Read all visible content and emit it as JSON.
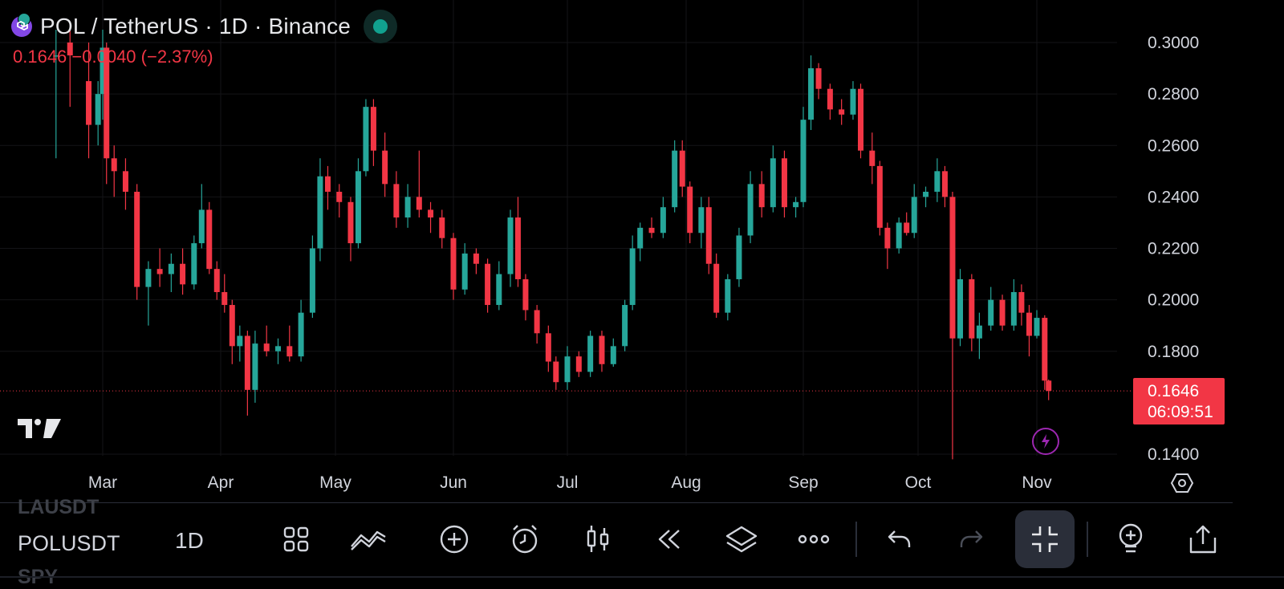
{
  "header": {
    "title": "POL / TetherUS · 1D · Binance",
    "change_line": "0.1646 −0.0040 (−2.37%)"
  },
  "price_tag": {
    "price": "0.1646",
    "countdown": "06:09:51"
  },
  "colors": {
    "up": "#26a69a",
    "down": "#f23645",
    "background": "#000000",
    "accent": "#f23645"
  },
  "toolbar": {
    "ghost_symbol_top": "LAUSDT",
    "symbol": "POLUSDT",
    "ghost_symbol_bottom": "SPY",
    "interval": "1D",
    "icons": [
      "apps-grid-icon",
      "indicators-icon",
      "add-icon",
      "alert-clock-icon",
      "candles-icon",
      "replay-icon",
      "layers-icon",
      "more-icon",
      "undo-icon",
      "redo-icon",
      "collapse-icon",
      "idea-bulb-icon",
      "share-icon"
    ]
  },
  "chart_data": {
    "type": "candlestick",
    "symbol": "POL / TetherUS",
    "interval": "1D",
    "exchange": "Binance",
    "last_price": 0.1646,
    "change": -0.004,
    "change_percent": -2.37,
    "ylim": [
      0.135,
      0.305
    ],
    "y_ticks": [
      "0.3000",
      "0.2800",
      "0.2600",
      "0.2400",
      "0.2200",
      "0.2000",
      "0.1800",
      "0.1400"
    ],
    "x_ticks": [
      "Mar",
      "Apr",
      "May",
      "Jun",
      "Jul",
      "Aug",
      "Sep",
      "Oct",
      "Nov"
    ],
    "series": [
      {
        "date": "Feb 19",
        "open": 0.295,
        "high": 0.305,
        "low": 0.255,
        "close": 0.295
      },
      {
        "date": "Feb 22",
        "open": 0.3,
        "high": 0.305,
        "low": 0.275,
        "close": 0.295
      },
      {
        "date": "Feb 26",
        "open": 0.285,
        "high": 0.3,
        "low": 0.255,
        "close": 0.268
      },
      {
        "date": "Feb 28",
        "open": 0.268,
        "high": 0.285,
        "low": 0.26,
        "close": 0.28
      },
      {
        "date": "Mar 1",
        "open": 0.28,
        "high": 0.305,
        "low": 0.27,
        "close": 0.298
      },
      {
        "date": "Mar 2",
        "open": 0.298,
        "high": 0.3,
        "low": 0.245,
        "close": 0.255
      },
      {
        "date": "Mar 4",
        "open": 0.255,
        "high": 0.26,
        "low": 0.24,
        "close": 0.25
      },
      {
        "date": "Mar 7",
        "open": 0.25,
        "high": 0.255,
        "low": 0.235,
        "close": 0.242
      },
      {
        "date": "Mar 10",
        "open": 0.242,
        "high": 0.245,
        "low": 0.2,
        "close": 0.205
      },
      {
        "date": "Mar 13",
        "open": 0.205,
        "high": 0.215,
        "low": 0.19,
        "close": 0.212
      },
      {
        "date": "Mar 16",
        "open": 0.212,
        "high": 0.22,
        "low": 0.205,
        "close": 0.21
      },
      {
        "date": "Mar 19",
        "open": 0.21,
        "high": 0.218,
        "low": 0.203,
        "close": 0.214
      },
      {
        "date": "Mar 22",
        "open": 0.214,
        "high": 0.22,
        "low": 0.202,
        "close": 0.206
      },
      {
        "date": "Mar 25",
        "open": 0.206,
        "high": 0.225,
        "low": 0.204,
        "close": 0.222
      },
      {
        "date": "Mar 27",
        "open": 0.222,
        "high": 0.245,
        "low": 0.22,
        "close": 0.235
      },
      {
        "date": "Mar 29",
        "open": 0.235,
        "high": 0.238,
        "low": 0.21,
        "close": 0.212
      },
      {
        "date": "Mar 31",
        "open": 0.212,
        "high": 0.215,
        "low": 0.2,
        "close": 0.203
      },
      {
        "date": "Apr 2",
        "open": 0.203,
        "high": 0.21,
        "low": 0.195,
        "close": 0.198
      },
      {
        "date": "Apr 4",
        "open": 0.198,
        "high": 0.2,
        "low": 0.175,
        "close": 0.182
      },
      {
        "date": "Apr 6",
        "open": 0.182,
        "high": 0.19,
        "low": 0.176,
        "close": 0.186
      },
      {
        "date": "Apr 8",
        "open": 0.186,
        "high": 0.188,
        "low": 0.155,
        "close": 0.165
      },
      {
        "date": "Apr 10",
        "open": 0.165,
        "high": 0.188,
        "low": 0.16,
        "close": 0.183
      },
      {
        "date": "Apr 13",
        "open": 0.183,
        "high": 0.19,
        "low": 0.178,
        "close": 0.18
      },
      {
        "date": "Apr 16",
        "open": 0.18,
        "high": 0.185,
        "low": 0.175,
        "close": 0.182
      },
      {
        "date": "Apr 19",
        "open": 0.182,
        "high": 0.19,
        "low": 0.176,
        "close": 0.178
      },
      {
        "date": "Apr 22",
        "open": 0.178,
        "high": 0.2,
        "low": 0.176,
        "close": 0.195
      },
      {
        "date": "Apr 25",
        "open": 0.195,
        "high": 0.225,
        "low": 0.193,
        "close": 0.22
      },
      {
        "date": "Apr 27",
        "open": 0.22,
        "high": 0.255,
        "low": 0.215,
        "close": 0.248
      },
      {
        "date": "Apr 29",
        "open": 0.248,
        "high": 0.252,
        "low": 0.235,
        "close": 0.242
      },
      {
        "date": "May 2",
        "open": 0.242,
        "high": 0.245,
        "low": 0.232,
        "close": 0.238
      },
      {
        "date": "May 5",
        "open": 0.238,
        "high": 0.24,
        "low": 0.215,
        "close": 0.222
      },
      {
        "date": "May 7",
        "open": 0.222,
        "high": 0.255,
        "low": 0.22,
        "close": 0.25
      },
      {
        "date": "May 9",
        "open": 0.25,
        "high": 0.278,
        "low": 0.248,
        "close": 0.275
      },
      {
        "date": "May 11",
        "open": 0.275,
        "high": 0.278,
        "low": 0.252,
        "close": 0.258
      },
      {
        "date": "May 14",
        "open": 0.258,
        "high": 0.265,
        "low": 0.24,
        "close": 0.245
      },
      {
        "date": "May 17",
        "open": 0.245,
        "high": 0.25,
        "low": 0.228,
        "close": 0.232
      },
      {
        "date": "May 20",
        "open": 0.232,
        "high": 0.245,
        "low": 0.228,
        "close": 0.24
      },
      {
        "date": "May 23",
        "open": 0.24,
        "high": 0.258,
        "low": 0.232,
        "close": 0.235
      },
      {
        "date": "May 26",
        "open": 0.235,
        "high": 0.238,
        "low": 0.226,
        "close": 0.232
      },
      {
        "date": "May 29",
        "open": 0.232,
        "high": 0.235,
        "low": 0.22,
        "close": 0.224
      },
      {
        "date": "Jun 1",
        "open": 0.224,
        "high": 0.226,
        "low": 0.2,
        "close": 0.204
      },
      {
        "date": "Jun 4",
        "open": 0.204,
        "high": 0.222,
        "low": 0.202,
        "close": 0.218
      },
      {
        "date": "Jun 7",
        "open": 0.218,
        "high": 0.22,
        "low": 0.21,
        "close": 0.214
      },
      {
        "date": "Jun 10",
        "open": 0.214,
        "high": 0.216,
        "low": 0.195,
        "close": 0.198
      },
      {
        "date": "Jun 13",
        "open": 0.198,
        "high": 0.215,
        "low": 0.196,
        "close": 0.21
      },
      {
        "date": "Jun 16",
        "open": 0.21,
        "high": 0.235,
        "low": 0.205,
        "close": 0.232
      },
      {
        "date": "Jun 18",
        "open": 0.232,
        "high": 0.24,
        "low": 0.205,
        "close": 0.208
      },
      {
        "date": "Jun 20",
        "open": 0.208,
        "high": 0.21,
        "low": 0.192,
        "close": 0.196
      },
      {
        "date": "Jun 23",
        "open": 0.196,
        "high": 0.198,
        "low": 0.183,
        "close": 0.187
      },
      {
        "date": "Jun 26",
        "open": 0.187,
        "high": 0.19,
        "low": 0.172,
        "close": 0.176
      },
      {
        "date": "Jun 28",
        "open": 0.176,
        "high": 0.178,
        "low": 0.165,
        "close": 0.168
      },
      {
        "date": "Jul 1",
        "open": 0.168,
        "high": 0.182,
        "low": 0.165,
        "close": 0.178
      },
      {
        "date": "Jul 4",
        "open": 0.178,
        "high": 0.18,
        "low": 0.17,
        "close": 0.172
      },
      {
        "date": "Jul 7",
        "open": 0.172,
        "high": 0.188,
        "low": 0.17,
        "close": 0.186
      },
      {
        "date": "Jul 10",
        "open": 0.186,
        "high": 0.188,
        "low": 0.172,
        "close": 0.175
      },
      {
        "date": "Jul 13",
        "open": 0.175,
        "high": 0.185,
        "low": 0.174,
        "close": 0.182
      },
      {
        "date": "Jul 16",
        "open": 0.182,
        "high": 0.2,
        "low": 0.18,
        "close": 0.198
      },
      {
        "date": "Jul 18",
        "open": 0.198,
        "high": 0.225,
        "low": 0.196,
        "close": 0.22
      },
      {
        "date": "Jul 20",
        "open": 0.22,
        "high": 0.23,
        "low": 0.215,
        "close": 0.228
      },
      {
        "date": "Jul 23",
        "open": 0.228,
        "high": 0.232,
        "low": 0.224,
        "close": 0.226
      },
      {
        "date": "Jul 26",
        "open": 0.226,
        "high": 0.24,
        "low": 0.224,
        "close": 0.236
      },
      {
        "date": "Jul 29",
        "open": 0.236,
        "high": 0.262,
        "low": 0.234,
        "close": 0.258
      },
      {
        "date": "Jul 31",
        "open": 0.258,
        "high": 0.262,
        "low": 0.24,
        "close": 0.244
      },
      {
        "date": "Aug 2",
        "open": 0.244,
        "high": 0.246,
        "low": 0.222,
        "close": 0.226
      },
      {
        "date": "Aug 5",
        "open": 0.226,
        "high": 0.24,
        "low": 0.22,
        "close": 0.236
      },
      {
        "date": "Aug 7",
        "open": 0.236,
        "high": 0.24,
        "low": 0.21,
        "close": 0.214
      },
      {
        "date": "Aug 9",
        "open": 0.214,
        "high": 0.218,
        "low": 0.193,
        "close": 0.195
      },
      {
        "date": "Aug 12",
        "open": 0.195,
        "high": 0.21,
        "low": 0.192,
        "close": 0.208
      },
      {
        "date": "Aug 15",
        "open": 0.208,
        "high": 0.228,
        "low": 0.205,
        "close": 0.225
      },
      {
        "date": "Aug 18",
        "open": 0.225,
        "high": 0.25,
        "low": 0.222,
        "close": 0.245
      },
      {
        "date": "Aug 21",
        "open": 0.245,
        "high": 0.25,
        "low": 0.232,
        "close": 0.236
      },
      {
        "date": "Aug 24",
        "open": 0.236,
        "high": 0.26,
        "low": 0.234,
        "close": 0.255
      },
      {
        "date": "Aug 27",
        "open": 0.255,
        "high": 0.258,
        "low": 0.232,
        "close": 0.236
      },
      {
        "date": "Aug 30",
        "open": 0.236,
        "high": 0.24,
        "low": 0.232,
        "close": 0.238
      },
      {
        "date": "Sep 1",
        "open": 0.238,
        "high": 0.275,
        "low": 0.236,
        "close": 0.27
      },
      {
        "date": "Sep 3",
        "open": 0.27,
        "high": 0.295,
        "low": 0.266,
        "close": 0.29
      },
      {
        "date": "Sep 5",
        "open": 0.29,
        "high": 0.292,
        "low": 0.278,
        "close": 0.282
      },
      {
        "date": "Sep 8",
        "open": 0.282,
        "high": 0.284,
        "low": 0.27,
        "close": 0.274
      },
      {
        "date": "Sep 11",
        "open": 0.274,
        "high": 0.278,
        "low": 0.268,
        "close": 0.272
      },
      {
        "date": "Sep 14",
        "open": 0.272,
        "high": 0.285,
        "low": 0.27,
        "close": 0.282
      },
      {
        "date": "Sep 16",
        "open": 0.282,
        "high": 0.284,
        "low": 0.255,
        "close": 0.258
      },
      {
        "date": "Sep 19",
        "open": 0.258,
        "high": 0.265,
        "low": 0.245,
        "close": 0.252
      },
      {
        "date": "Sep 21",
        "open": 0.252,
        "high": 0.254,
        "low": 0.225,
        "close": 0.228
      },
      {
        "date": "Sep 23",
        "open": 0.228,
        "high": 0.23,
        "low": 0.212,
        "close": 0.22
      },
      {
        "date": "Sep 26",
        "open": 0.22,
        "high": 0.232,
        "low": 0.218,
        "close": 0.23
      },
      {
        "date": "Sep 28",
        "open": 0.23,
        "high": 0.234,
        "low": 0.225,
        "close": 0.226
      },
      {
        "date": "Sep 30",
        "open": 0.226,
        "high": 0.245,
        "low": 0.224,
        "close": 0.24
      },
      {
        "date": "Oct 3",
        "open": 0.24,
        "high": 0.244,
        "low": 0.236,
        "close": 0.242
      },
      {
        "date": "Oct 6",
        "open": 0.242,
        "high": 0.255,
        "low": 0.238,
        "close": 0.25
      },
      {
        "date": "Oct 8",
        "open": 0.25,
        "high": 0.252,
        "low": 0.236,
        "close": 0.24
      },
      {
        "date": "Oct 10",
        "open": 0.24,
        "high": 0.242,
        "low": 0.138,
        "close": 0.185
      },
      {
        "date": "Oct 12",
        "open": 0.185,
        "high": 0.212,
        "low": 0.182,
        "close": 0.208
      },
      {
        "date": "Oct 15",
        "open": 0.208,
        "high": 0.21,
        "low": 0.18,
        "close": 0.185
      },
      {
        "date": "Oct 17",
        "open": 0.185,
        "high": 0.195,
        "low": 0.177,
        "close": 0.19
      },
      {
        "date": "Oct 20",
        "open": 0.19,
        "high": 0.205,
        "low": 0.188,
        "close": 0.2
      },
      {
        "date": "Oct 23",
        "open": 0.2,
        "high": 0.202,
        "low": 0.188,
        "close": 0.19
      },
      {
        "date": "Oct 26",
        "open": 0.19,
        "high": 0.208,
        "low": 0.188,
        "close": 0.203
      },
      {
        "date": "Oct 28",
        "open": 0.203,
        "high": 0.206,
        "low": 0.19,
        "close": 0.195
      },
      {
        "date": "Oct 30",
        "open": 0.195,
        "high": 0.198,
        "low": 0.178,
        "close": 0.186
      },
      {
        "date": "Nov 1",
        "open": 0.186,
        "high": 0.196,
        "low": 0.185,
        "close": 0.193
      },
      {
        "date": "Nov 3",
        "open": 0.193,
        "high": 0.194,
        "low": 0.165,
        "close": 0.1686
      },
      {
        "date": "Nov 4",
        "open": 0.1686,
        "high": 0.169,
        "low": 0.161,
        "close": 0.1646
      }
    ]
  }
}
